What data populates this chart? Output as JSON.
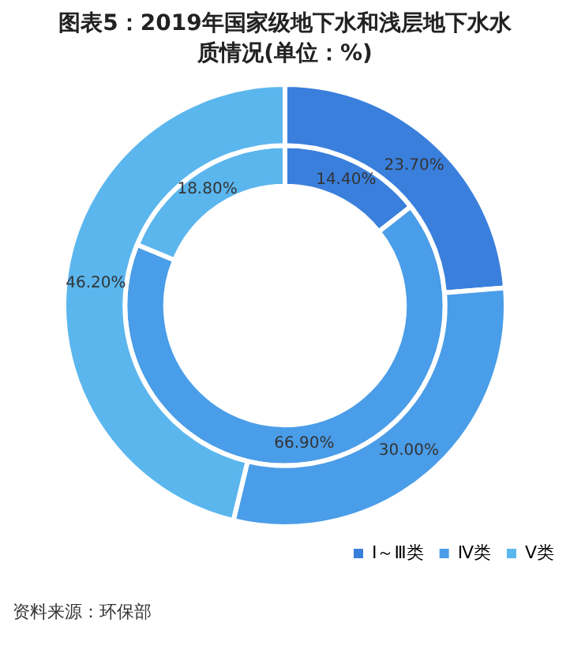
{
  "chart_data": {
    "type": "donut",
    "title": "图表5：2019年国家级地下水和浅层地下水水质情况(单位：%)",
    "categories": [
      "Ⅰ～Ⅲ类",
      "Ⅳ类",
      "Ⅴ类"
    ],
    "series": [
      {
        "colors": [
          "#3a7fdc",
          "#4a9de8",
          "#5bb6ee"
        ],
        "values": [
          23.7,
          30.0,
          46.2
        ],
        "value_labels": [
          "23.70%",
          "30.00%",
          "46.20%"
        ]
      },
      {
        "colors": [
          "#3a7fdc",
          "#4a9de8",
          "#5bb6ee"
        ],
        "values": [
          14.4,
          66.9,
          18.8
        ],
        "value_labels": [
          "14.40%",
          "66.90%",
          "18.80%"
        ]
      }
    ],
    "legend": "bottom",
    "annotations": [
      "资料来源：环保部"
    ]
  }
}
